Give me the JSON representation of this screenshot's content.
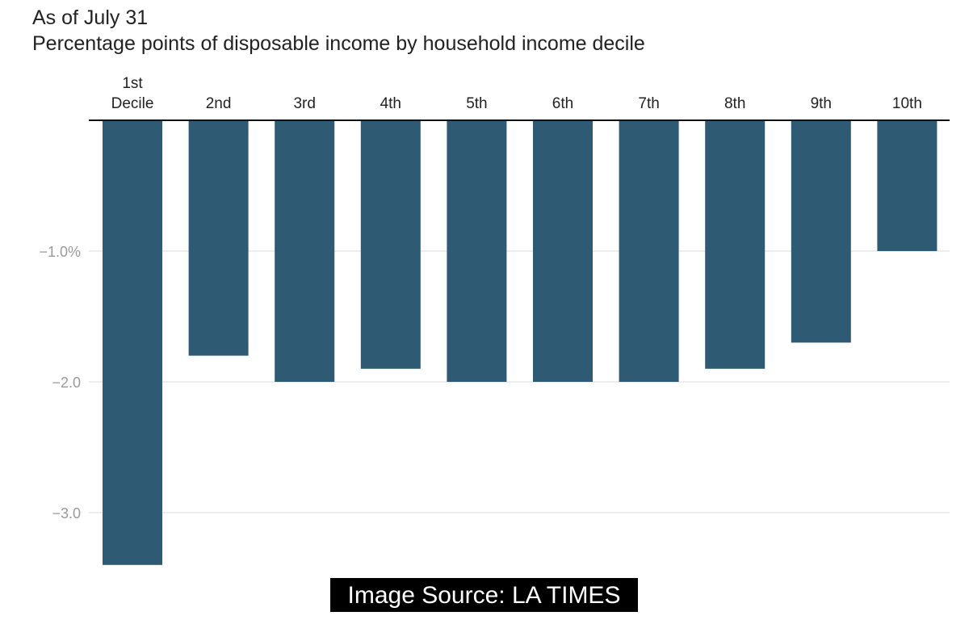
{
  "header": {
    "title": "As of July 31",
    "subtitle": "Percentage points of disposable income by household income decile"
  },
  "chart_data": {
    "type": "bar",
    "categories": [
      "1st Decile",
      "2nd",
      "3rd",
      "4th",
      "5th",
      "6th",
      "7th",
      "8th",
      "9th",
      "10th"
    ],
    "category_lines": [
      [
        "1st",
        "Decile"
      ],
      [
        "2nd"
      ],
      [
        "3rd"
      ],
      [
        "4th"
      ],
      [
        "5th"
      ],
      [
        "6th"
      ],
      [
        "7th"
      ],
      [
        "8th"
      ],
      [
        "9th"
      ],
      [
        "10th"
      ]
    ],
    "values": [
      -3.4,
      -1.8,
      -2.0,
      -1.9,
      -2.0,
      -2.0,
      -2.0,
      -1.9,
      -1.7,
      -1.0
    ],
    "yticks": [
      {
        "value": -1.0,
        "label": "−1.0%"
      },
      {
        "value": -2.0,
        "label": "−2.0"
      },
      {
        "value": -3.0,
        "label": "−3.0"
      }
    ],
    "ylim": [
      -3.4,
      0
    ],
    "grid": true,
    "bar_color": "#2e5b73",
    "grid_color": "#e6e6e6",
    "tick_label_color": "#9a9a9a"
  },
  "footer": {
    "source": "Image Source: LA TIMES"
  }
}
